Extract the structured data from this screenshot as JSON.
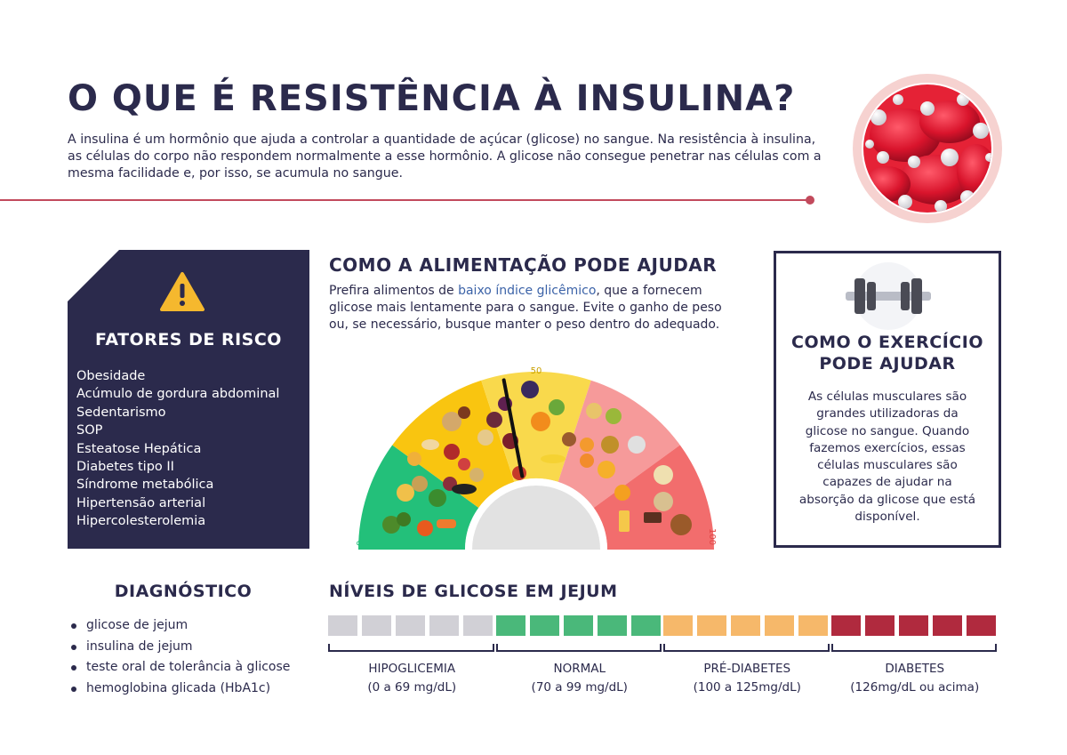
{
  "header": {
    "title": "O QUE É RESISTÊNCIA À INSULINA?",
    "intro": "A insulina é um hormônio que ajuda a controlar a quantidade de açúcar (glicose) no sangue. Na resistência à insulina, as células do corpo não respondem normalmente a esse hormônio. A glicose não consegue penetrar nas células com a mesma facilidade e, por isso, se acumula no sangue.",
    "image_icon": "red-blood-cells-icon"
  },
  "risk": {
    "icon": "warning-icon",
    "title": "FATORES DE RISCO",
    "items": [
      "Obesidade",
      "Acúmulo de gordura abdominal",
      "Sedentarismo",
      "SOP",
      "Esteatose Hepática",
      "Diabetes tipo II",
      "Síndrome metabólica",
      "Hipertensão arterial",
      "Hipercolesterolemia"
    ]
  },
  "food": {
    "title": "COMO A ALIMENTAÇÃO PODE AJUDAR",
    "text_before": "Prefira alimentos de ",
    "text_highlight": "baixo índice glicêmico",
    "text_after": ", que a fornecem glicose mais lentamente para o sangue. Evite o ganho de peso ou, se necessário, busque manter o peso dentro do adequado.",
    "gauge": {
      "label_min": "0",
      "label_mid": "50",
      "label_max": "100",
      "needle_value": 44,
      "segment_colors": [
        "#23c07a",
        "#f9c510",
        "#f9d94c",
        "#f69a9a",
        "#f26d6d"
      ],
      "food_icon": "food-items-icon"
    }
  },
  "exercise": {
    "icon": "dumbbell-icon",
    "title": "COMO O EXERCÍCIO PODE AJUDAR",
    "text": "As células musculares são grandes utilizadoras da glicose no sangue. Quando fazemos exercícios, essas células musculares são capazes de ajudar na absorção  da glicose que está disponível."
  },
  "diagnosis": {
    "title": "DIAGNÓSTICO",
    "items": [
      "glicose de jejum",
      "insulina de jejum",
      "teste oral de tolerância à glicose",
      "hemoglobina glicada (HbA1c)"
    ]
  },
  "glucose": {
    "title": "NÍVEIS DE GLICOSE EM JEJUM",
    "segments": [
      {
        "name": "HIPOGLICEMIA",
        "range": "(0 a 69 mg/dL)",
        "color": "#d1d0d6"
      },
      {
        "name": "NORMAL",
        "range": "(70 a 99 mg/dL)",
        "color": "#4ab87a"
      },
      {
        "name": "PRÉ-DIABETES",
        "range": "(100 a 125mg/dL)",
        "color": "#f6b86a"
      },
      {
        "name": "DIABETES",
        "range": "(126mg/dL ou acima)",
        "color": "#b02a3e"
      }
    ]
  }
}
